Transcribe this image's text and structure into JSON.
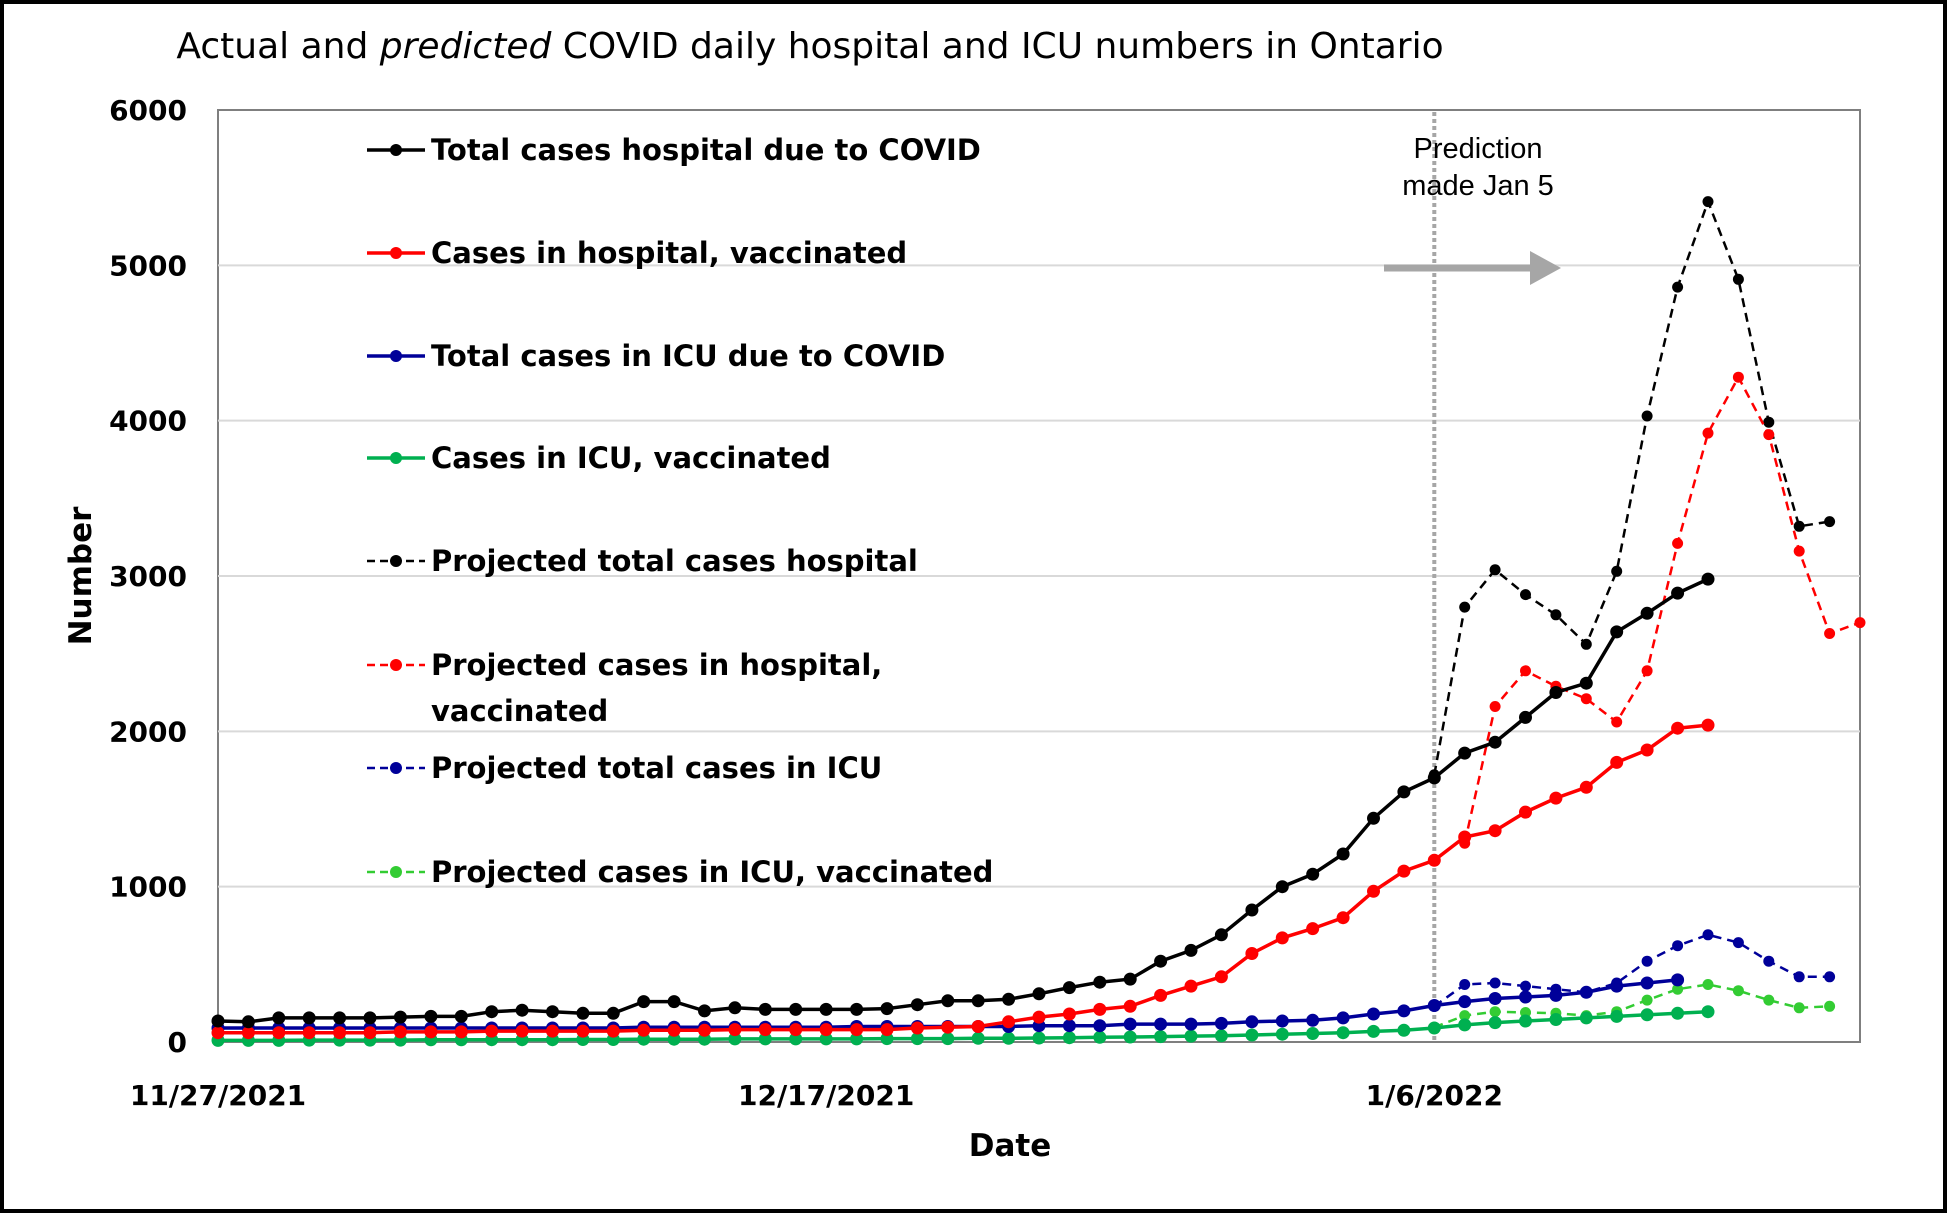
{
  "chart_data": {
    "type": "line",
    "title": "Actual and predicted COVID daily hospital and ICU numbers in Ontario",
    "title_parts": [
      "Actual and ",
      "predicted",
      " COVID daily hospital and ICU numbers in Ontario"
    ],
    "xlabel": "Date",
    "ylabel": "Number",
    "ylim": [
      0,
      6000
    ],
    "yticks": [
      0,
      1000,
      2000,
      3000,
      4000,
      5000,
      6000
    ],
    "x_start": "2021-11-27",
    "xlim_days": [
      0,
      54
    ],
    "xticks": [
      "11/27/2021",
      "12/17/2021",
      "1/6/2022"
    ],
    "grid": true,
    "legend_position": "top-left",
    "annotation": {
      "lines": [
        "Prediction",
        "made Jan 5"
      ],
      "marker_date": "1/6/2022"
    },
    "series": [
      {
        "name": "Total cases hospital due to COVID",
        "color": "#000000",
        "dashed": false,
        "x_start_day": 0,
        "values": [
          135,
          130,
          155,
          155,
          155,
          155,
          160,
          165,
          165,
          195,
          205,
          195,
          185,
          185,
          260,
          260,
          200,
          220,
          210,
          210,
          210,
          210,
          215,
          240,
          265,
          265,
          275,
          310,
          350,
          385,
          405,
          520,
          590,
          690,
          850,
          1000,
          1080,
          1210,
          1440,
          1610,
          1700,
          1860,
          1930,
          2090,
          2250,
          2310,
          2640,
          2760,
          2890,
          2980
        ]
      },
      {
        "name": "Cases in hospital, vaccinated",
        "color": "#ff0000",
        "dashed": false,
        "x_start_day": 0,
        "values": [
          60,
          60,
          60,
          60,
          60,
          60,
          65,
          65,
          65,
          70,
          70,
          70,
          70,
          70,
          75,
          75,
          75,
          80,
          80,
          80,
          80,
          80,
          80,
          90,
          95,
          100,
          130,
          160,
          180,
          210,
          230,
          300,
          360,
          420,
          570,
          670,
          730,
          800,
          970,
          1100,
          1170,
          1320,
          1360,
          1480,
          1570,
          1640,
          1800,
          1880,
          2020,
          2040
        ]
      },
      {
        "name": "Total cases in ICU due to COVID",
        "color": "#000099",
        "dashed": false,
        "x_start_day": 0,
        "values": [
          90,
          90,
          90,
          90,
          90,
          90,
          90,
          90,
          90,
          90,
          90,
          90,
          90,
          90,
          95,
          95,
          95,
          95,
          95,
          95,
          95,
          100,
          100,
          100,
          100,
          100,
          100,
          105,
          105,
          105,
          115,
          115,
          115,
          120,
          130,
          135,
          140,
          155,
          180,
          200,
          235,
          260,
          280,
          290,
          300,
          320,
          360,
          380,
          400
        ]
      },
      {
        "name": "Cases in ICU, vaccinated",
        "color": "#00b050",
        "dashed": false,
        "x_start_day": 0,
        "values": [
          10,
          10,
          10,
          12,
          12,
          12,
          12,
          14,
          14,
          15,
          15,
          15,
          16,
          16,
          18,
          18,
          18,
          20,
          20,
          20,
          20,
          20,
          22,
          22,
          22,
          24,
          24,
          26,
          28,
          30,
          32,
          35,
          38,
          40,
          45,
          50,
          55,
          60,
          68,
          75,
          90,
          110,
          125,
          135,
          145,
          155,
          165,
          175,
          185,
          195
        ]
      },
      {
        "name": "Projected total cases hospital",
        "color": "#000000",
        "dashed": true,
        "x_start_day": 40,
        "values": [
          1720,
          2800,
          3040,
          2880,
          2750,
          2560,
          3030,
          4030,
          4860,
          5410,
          4910,
          3990,
          3320,
          3350
        ]
      },
      {
        "name": "Projected cases in hospital, vaccinated",
        "color": "#ff0000",
        "dashed": true,
        "x_start_day": 41,
        "values": [
          1280,
          2160,
          2390,
          2290,
          2210,
          2060,
          2390,
          3210,
          3920,
          4280,
          3910,
          3160,
          2630,
          2700
        ]
      },
      {
        "name": "Projected total cases in ICU",
        "color": "#000099",
        "dashed": true,
        "x_start_day": 40,
        "values": [
          230,
          370,
          380,
          360,
          340,
          320,
          380,
          520,
          620,
          690,
          640,
          520,
          420,
          420
        ]
      },
      {
        "name": "Projected cases in ICU, vaccinated",
        "color": "#33cc33",
        "dashed": true,
        "x_start_day": 40,
        "values": [
          95,
          170,
          195,
          190,
          185,
          170,
          195,
          270,
          340,
          370,
          330,
          270,
          220,
          230
        ]
      }
    ],
    "legend": [
      {
        "label": "Total cases hospital due to COVID"
      },
      {
        "label": "Cases in hospital, vaccinated"
      },
      {
        "label": "Total cases in ICU due to COVID"
      },
      {
        "label": "Cases in ICU, vaccinated"
      },
      {
        "label": "Projected total cases hospital"
      },
      {
        "label": "Projected cases in hospital,",
        "label2": "vaccinated"
      },
      {
        "label": "Projected total cases in ICU"
      },
      {
        "label": "Projected cases in ICU, vaccinated"
      }
    ]
  }
}
